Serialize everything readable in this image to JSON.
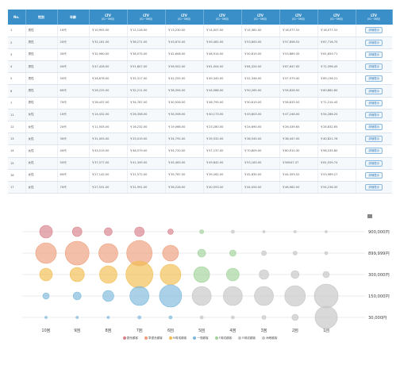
{
  "table": {
    "headers": [
      {
        "top": "No.",
        "sub": ""
      },
      {
        "top": "性別",
        "sub": ""
      },
      {
        "top": "年齢",
        "sub": ""
      },
      {
        "top": "LTV",
        "sub": "(01~06月)"
      },
      {
        "top": "LTV",
        "sub": "(01~06月)"
      },
      {
        "top": "LTV",
        "sub": "(01~06月)"
      },
      {
        "top": "LTV",
        "sub": "(01~06月)"
      },
      {
        "top": "LTV",
        "sub": "(01~06月)"
      },
      {
        "top": "LTV",
        "sub": "(01~06月)"
      },
      {
        "top": "LTV",
        "sub": "(01~06月)"
      },
      {
        "top": "LTV",
        "sub": "(01~06月)"
      },
      {
        "top": "",
        "sub": ""
      }
    ],
    "button_label": "詳細表示",
    "rows": [
      [
        "1",
        "男性",
        "10代",
        "￥10,905.00",
        "￥12,128.00",
        "￥13,230.00",
        "￥14,007.00",
        "￥15,381.00",
        "￥16,077.52",
        "￥16,077.52"
      ],
      [
        "2",
        "男性",
        "20代",
        "￥32,181.00",
        "￥38,271.00",
        "￥43,674.00",
        "￥49,482.00",
        "￥53,800.00",
        "￥57,858.52",
        "￥67,716.70"
      ],
      [
        "3",
        "男性",
        "30代",
        "￥32,960.00",
        "￥38,075.00",
        "￥42,608.00",
        "￥46,914.00",
        "￥50,819.00",
        "￥53,889.35",
        "￥61,659.71"
      ],
      [
        "4",
        "男性",
        "40代",
        "￥47,428.00",
        "￥51,807.00",
        "￥56,502.00",
        "￥61,004.00",
        "￥64,324.00",
        "￥67,647.00",
        "￥72,396.45"
      ],
      [
        "5",
        "男性",
        "50代",
        "￥28,678.00",
        "￥35,317.00",
        "￥42,255.00",
        "￥49,345.00",
        "￥52,346.00",
        "￥57,979.40",
        "￥69,156.21"
      ],
      [
        "6",
        "男性",
        "60代",
        "￥26,225.00",
        "￥32,211.00",
        "￥38,394.00",
        "￥44,088.00",
        "￥50,265.00",
        "￥54,828.00",
        "￥60,882.80"
      ],
      [
        "7",
        "男性",
        "70代",
        "￥28,437.00",
        "￥34,787.00",
        "￥40,926.00",
        "￥46,795.00",
        "￥50,619.00",
        "￥58,833.50",
        "￥71,214.45"
      ],
      [
        "11",
        "女性",
        "10代",
        "￥14,432.00",
        "￥26,358.00",
        "￥34,506.00",
        "￥40,173.00",
        "￥43,803.00",
        "￥47,246.00",
        "￥54,286.20"
      ],
      [
        "12",
        "女性",
        "20代",
        "￥11,505.00",
        "￥16,232.00",
        "￥19,066.00",
        "￥23,280.00",
        "￥24,690.00",
        "￥26,439.65",
        "￥28,832.65"
      ],
      [
        "13",
        "女性",
        "30代",
        "￥31,005.00",
        "￥33,019.00",
        "￥34,792.00",
        "￥35,532.00",
        "￥36,545.00",
        "￥38,447.00",
        "￥40,821.76"
      ],
      [
        "14",
        "女性",
        "40代",
        "￥43,519.00",
        "￥46,579.00",
        "￥54,720.00",
        "￥57,137.00",
        "￥70,609.00",
        "￥80,910.30",
        "￥96,535.80"
      ],
      [
        "15",
        "女性",
        "50代",
        "￥37,577.00",
        "￥41,349.00",
        "￥45,463.00",
        "￥49,842.00",
        "￥53,183.00",
        "￥56047.37",
        "￥61,559.74"
      ],
      [
        "16",
        "女性",
        "60代",
        "￥27,142.00",
        "￥31,572.00",
        "￥35,767.00",
        "￥39,262.00",
        "￥42,635.00",
        "￥44,393.52",
        "￥53,989.27"
      ],
      [
        "17",
        "女性",
        "70代",
        "￥27,531.00",
        "￥31,991.00",
        "￥36,226.00",
        "￥40,593.00",
        "￥44,054.00",
        "￥46,982.50",
        "￥54,236.30"
      ]
    ]
  },
  "chart_data": {
    "type": "scatter",
    "y_categories": [
      "900,000円",
      "899,999円",
      "300,000円",
      "150,000円",
      "30,000円"
    ],
    "x_categories": [
      "10回",
      "9回",
      "8回",
      "7回",
      "6回",
      "5回",
      "4回",
      "3回",
      "2回",
      "1回"
    ],
    "series": [
      {
        "name": "優良顧客",
        "color": "#d9808a"
      },
      {
        "name": "準優良顧客",
        "color": "#ec9d7a"
      },
      {
        "name": "M育成顧客",
        "color": "#f1bd4f"
      },
      {
        "name": "一般顧客",
        "color": "#7cb8dc"
      },
      {
        "name": "F育成顧客",
        "color": "#9fd39a"
      },
      {
        "name": "R育成顧客",
        "color": "#c4c4c4"
      },
      {
        "name": "休眠顧客",
        "color": "#c4c4c4"
      }
    ],
    "points": [
      {
        "x": "10回",
        "y": "900,000円",
        "size": 8,
        "series": "優良顧客"
      },
      {
        "x": "9回",
        "y": "900,000円",
        "size": 6,
        "series": "優良顧客"
      },
      {
        "x": "8回",
        "y": "900,000円",
        "size": 5,
        "series": "優良顧客"
      },
      {
        "x": "7回",
        "y": "900,000円",
        "size": 6,
        "series": "優良顧客"
      },
      {
        "x": "6回",
        "y": "900,000円",
        "size": 3.5,
        "series": "優良顧客"
      },
      {
        "x": "5回",
        "y": "900,000円",
        "size": 2.5,
        "series": "F育成顧客"
      },
      {
        "x": "4回",
        "y": "900,000円",
        "size": 2,
        "series": "R育成顧客"
      },
      {
        "x": "3回",
        "y": "900,000円",
        "size": 1.5,
        "series": "R育成顧客"
      },
      {
        "x": "2回",
        "y": "900,000円",
        "size": 1.5,
        "series": "R育成顧客"
      },
      {
        "x": "1回",
        "y": "900,000円",
        "size": 1.5,
        "series": "R育成顧客"
      },
      {
        "x": "10回",
        "y": "899,999円",
        "size": 13,
        "series": "準優良顧客"
      },
      {
        "x": "9回",
        "y": "899,999円",
        "size": 15,
        "series": "準優良顧客"
      },
      {
        "x": "8回",
        "y": "899,999円",
        "size": 12,
        "series": "準優良顧客"
      },
      {
        "x": "7回",
        "y": "899,999円",
        "size": 16,
        "series": "準優良顧客"
      },
      {
        "x": "6回",
        "y": "899,999円",
        "size": 10,
        "series": "準優良顧客"
      },
      {
        "x": "5回",
        "y": "899,999円",
        "size": 5,
        "series": "F育成顧客"
      },
      {
        "x": "4回",
        "y": "899,999円",
        "size": 4,
        "series": "F育成顧客"
      },
      {
        "x": "3回",
        "y": "899,999円",
        "size": 3,
        "series": "R育成顧客"
      },
      {
        "x": "2回",
        "y": "899,999円",
        "size": 2.5,
        "series": "R育成顧客"
      },
      {
        "x": "1回",
        "y": "899,999円",
        "size": 2,
        "series": "R育成顧客"
      },
      {
        "x": "10回",
        "y": "300,000円",
        "size": 8,
        "series": "M育成顧客"
      },
      {
        "x": "9回",
        "y": "300,000円",
        "size": 9,
        "series": "M育成顧客"
      },
      {
        "x": "8回",
        "y": "300,000円",
        "size": 11,
        "series": "M育成顧客"
      },
      {
        "x": "7回",
        "y": "300,000円",
        "size": 17,
        "series": "M育成顧客"
      },
      {
        "x": "6回",
        "y": "300,000円",
        "size": 13,
        "series": "M育成顧客"
      },
      {
        "x": "5回",
        "y": "300,000円",
        "size": 10,
        "series": "F育成顧客"
      },
      {
        "x": "4回",
        "y": "300,000円",
        "size": 8,
        "series": "F育成顧客"
      },
      {
        "x": "3回",
        "y": "300,000円",
        "size": 6,
        "series": "R育成顧客"
      },
      {
        "x": "2回",
        "y": "300,000円",
        "size": 5,
        "series": "R育成顧客"
      },
      {
        "x": "1回",
        "y": "300,000円",
        "size": 4,
        "series": "R育成顧客"
      },
      {
        "x": "10回",
        "y": "150,000円",
        "size": 4,
        "series": "一般顧客"
      },
      {
        "x": "9回",
        "y": "150,000円",
        "size": 5,
        "series": "一般顧客"
      },
      {
        "x": "8回",
        "y": "150,000円",
        "size": 7,
        "series": "一般顧客"
      },
      {
        "x": "7回",
        "y": "150,000円",
        "size": 12,
        "series": "一般顧客"
      },
      {
        "x": "6回",
        "y": "150,000円",
        "size": 14,
        "series": "一般顧客"
      },
      {
        "x": "5回",
        "y": "150,000円",
        "size": 12,
        "series": "R育成顧客"
      },
      {
        "x": "4回",
        "y": "150,000円",
        "size": 12,
        "series": "R育成顧客"
      },
      {
        "x": "3回",
        "y": "150,000円",
        "size": 12,
        "series": "R育成顧客"
      },
      {
        "x": "2回",
        "y": "150,000円",
        "size": 13,
        "series": "R育成顧客"
      },
      {
        "x": "1回",
        "y": "150,000円",
        "size": 15,
        "series": "R育成顧客"
      },
      {
        "x": "10回",
        "y": "30,000円",
        "size": 1.5,
        "series": "一般顧客"
      },
      {
        "x": "9回",
        "y": "30,000円",
        "size": 1.5,
        "series": "一般顧客"
      },
      {
        "x": "8回",
        "y": "30,000円",
        "size": 1.5,
        "series": "一般顧客"
      },
      {
        "x": "7回",
        "y": "30,000円",
        "size": 2,
        "series": "一般顧客"
      },
      {
        "x": "6回",
        "y": "30,000円",
        "size": 2,
        "series": "一般顧客"
      },
      {
        "x": "5回",
        "y": "30,000円",
        "size": 2,
        "series": "R育成顧客"
      },
      {
        "x": "4回",
        "y": "30,000円",
        "size": 2,
        "series": "R育成顧客"
      },
      {
        "x": "3回",
        "y": "30,000円",
        "size": 2.5,
        "series": "R育成顧客"
      },
      {
        "x": "2回",
        "y": "30,000円",
        "size": 4,
        "series": "R育成顧客"
      },
      {
        "x": "1回",
        "y": "30,000円",
        "size": 14,
        "series": "休眠顧客"
      }
    ]
  }
}
